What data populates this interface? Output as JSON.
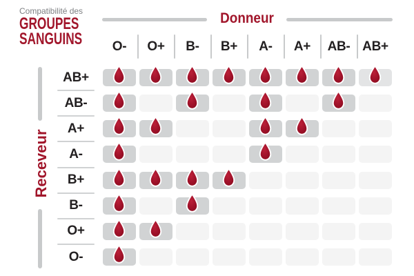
{
  "title": {
    "kicker": "Compatibilité des",
    "line1": "GROUPES",
    "line2": "SANGUINS"
  },
  "axes": {
    "donor_label": "Donneur",
    "receiver_label": "Receveur"
  },
  "donor_columns": [
    "O-",
    "O+",
    "B-",
    "B+",
    "A-",
    "A+",
    "AB-",
    "AB+"
  ],
  "receiver_rows": [
    "AB+",
    "AB-",
    "A+",
    "A-",
    "B+",
    "B-",
    "O+",
    "O-"
  ],
  "compatibility_matrix": [
    {
      "receiver": "AB+",
      "cells": [
        1,
        1,
        1,
        1,
        1,
        1,
        1,
        2
      ]
    },
    {
      "receiver": "AB-",
      "cells": [
        1,
        0,
        1,
        0,
        1,
        0,
        1,
        0
      ]
    },
    {
      "receiver": "A+",
      "cells": [
        1,
        1,
        0,
        0,
        1,
        1,
        0,
        0
      ]
    },
    {
      "receiver": "A-",
      "cells": [
        1,
        0,
        0,
        0,
        1,
        0,
        0,
        0
      ]
    },
    {
      "receiver": "B+",
      "cells": [
        1,
        1,
        1,
        1,
        0,
        0,
        0,
        0
      ]
    },
    {
      "receiver": "B-",
      "cells": [
        1,
        0,
        1,
        0,
        0,
        0,
        0,
        0
      ]
    },
    {
      "receiver": "O+",
      "cells": [
        1,
        1,
        0,
        0,
        0,
        0,
        0,
        0
      ]
    },
    {
      "receiver": "O-",
      "cells": [
        1,
        0,
        0,
        0,
        0,
        0,
        0,
        0
      ]
    }
  ],
  "cell_value_key": {
    "0": "not-compatible-empty-cell",
    "1": "compatible-blood-drop",
    "2": "compatible-blood-drop-light-cell"
  },
  "icons": {
    "compatible_marker": "blood-drop-icon"
  },
  "colors": {
    "accent_red": "#a1162b",
    "drop_red": "#a0122a",
    "drop_red_highlight": "#bb2038",
    "drop_red_shadow": "#8a0c1e",
    "cell_drop_bg": "#d1d3d4",
    "cell_drop_bg_light": "#e3e4e5",
    "cell_empty_bg": "#f4f4f4",
    "axis_line_gray": "#c8cacb",
    "row_divider_gray": "#d0d2d3",
    "text_dark": "#232021",
    "text_gray": "#7e8083"
  }
}
